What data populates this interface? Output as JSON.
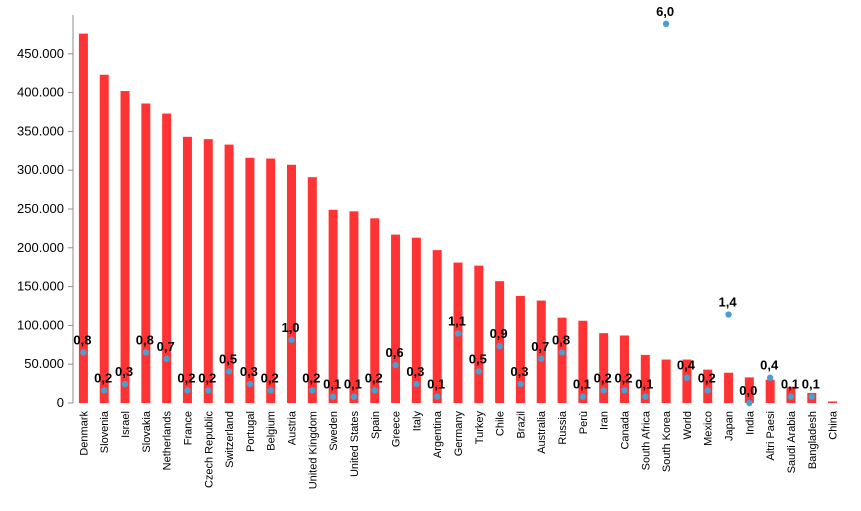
{
  "chart_data": {
    "type": "bar",
    "categories": [
      "Denmark",
      "Slovenia",
      "Israel",
      "Slovakia",
      "Netherlands",
      "France",
      "Czech Republic",
      "Switzerland",
      "Portugal",
      "Belgium",
      "Austria",
      "United Kingdom",
      "Sweden",
      "United States",
      "Spain",
      "Greece",
      "Italy",
      "Argentina",
      "Germany",
      "Turkey",
      "Chile",
      "Brazil",
      "Australia",
      "Russia",
      "Perù",
      "Iran",
      "Canada",
      "South Africa",
      "South Korea",
      "World",
      "Mexico",
      "Japan",
      "India",
      "Altri Paesi",
      "Saudi Arabia",
      "Bangladesh",
      "China"
    ],
    "series": [
      {
        "values": [
          476000,
          423000,
          402000,
          386000,
          373000,
          343000,
          340000,
          333000,
          316000,
          315000,
          307000,
          291000,
          249000,
          247000,
          238000,
          217000,
          213000,
          197000,
          181000,
          177000,
          157000,
          138000,
          132000,
          110000,
          106000,
          90000,
          87000,
          62000,
          56000,
          56000,
          43000,
          39000,
          33000,
          30000,
          21000,
          13000,
          2000
        ],
        "color": "#ff3333"
      },
      {
        "values": [
          0.8,
          0.2,
          0.3,
          0.8,
          0.7,
          0.2,
          0.2,
          0.5,
          0.3,
          0.2,
          1.0,
          0.2,
          0.1,
          0.1,
          0.2,
          0.6,
          0.3,
          0.1,
          1.1,
          0.5,
          0.9,
          0.3,
          0.7,
          0.8,
          0.1,
          0.2,
          0.2,
          0.1,
          6.0,
          0.4,
          0.2,
          1.4,
          0.0,
          0.4,
          0.1,
          0.1,
          null
        ],
        "labels": [
          "0,8",
          "0,2",
          "0,3",
          "0,8",
          "0,7",
          "0,2",
          "0,2",
          "0,5",
          "0,3",
          "0,2",
          "1,0",
          "0,2",
          "0,1",
          "0,1",
          "0,2",
          "0,6",
          "0,3",
          "0,1",
          "1,1",
          "0,5",
          "0,9",
          "0,3",
          "0,7",
          "0,8",
          "0,1",
          "0,2",
          "0,2",
          "0,1",
          "6,0",
          "0,4",
          "0,2",
          "1,4",
          "0,0",
          "0,4",
          "0,1",
          "0,1",
          ""
        ],
        "color": "#4a9fd0"
      }
    ],
    "yticks": [
      "450.000",
      "400.000",
      "350.000",
      "300.000",
      "250.000",
      "200.000",
      "150.000",
      "100.000",
      "50.000",
      "0"
    ],
    "ylim": [
      0,
      500000
    ],
    "title": "",
    "xlabel": "",
    "ylabel": "",
    "grid": false,
    "legend": "none"
  }
}
